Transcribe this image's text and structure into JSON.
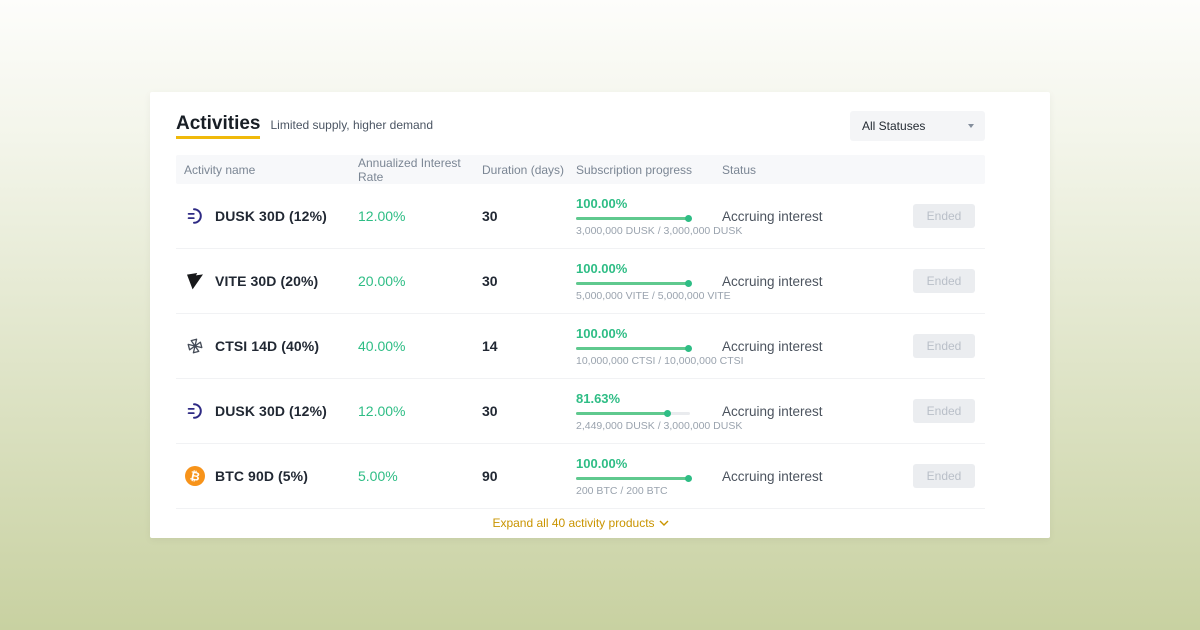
{
  "header": {
    "title": "Activities",
    "subtitle": "Limited supply, higher demand",
    "status_filter": "All Statuses"
  },
  "table": {
    "columns": [
      "Activity name",
      "Annualized Interest Rate",
      "Duration (days)",
      "Subscription progress",
      "Status"
    ],
    "rows": [
      {
        "icon": "dusk-coin-icon",
        "name": "DUSK 30D (12%)",
        "rate": "12.00%",
        "duration": "30",
        "progress_percent": "100.00%",
        "progress_value": 100,
        "amounts": "3,000,000 DUSK / 3,000,000 DUSK",
        "status": "Accruing interest",
        "action_label": "Ended"
      },
      {
        "icon": "vite-coin-icon",
        "name": "VITE 30D (20%)",
        "rate": "20.00%",
        "duration": "30",
        "progress_percent": "100.00%",
        "progress_value": 100,
        "amounts": "5,000,000 VITE / 5,000,000 VITE",
        "status": "Accruing interest",
        "action_label": "Ended"
      },
      {
        "icon": "ctsi-coin-icon",
        "name": "CTSI 14D (40%)",
        "rate": "40.00%",
        "duration": "14",
        "progress_percent": "100.00%",
        "progress_value": 100,
        "amounts": "10,000,000 CTSI / 10,000,000 CTSI",
        "status": "Accruing interest",
        "action_label": "Ended"
      },
      {
        "icon": "dusk-coin-icon",
        "name": "DUSK 30D (12%)",
        "rate": "12.00%",
        "duration": "30",
        "progress_percent": "81.63%",
        "progress_value": 81.63,
        "amounts": "2,449,000 DUSK / 3,000,000 DUSK",
        "status": "Accruing interest",
        "action_label": "Ended"
      },
      {
        "icon": "btc-coin-icon",
        "name": "BTC 90D (5%)",
        "rate": "5.00%",
        "duration": "90",
        "progress_percent": "100.00%",
        "progress_value": 100,
        "amounts": "200 BTC / 200 BTC",
        "status": "Accruing interest",
        "action_label": "Ended"
      }
    ]
  },
  "footer": {
    "expand_link": "Expand all 40 activity products"
  },
  "colors": {
    "accent_gold": "#f0b90b",
    "link_gold": "#c99400",
    "positive_green": "#2ebd85",
    "progress_fill_green": "#5fc98e",
    "btc_orange": "#f7931a",
    "dusk_indigo": "#2e2a84"
  }
}
